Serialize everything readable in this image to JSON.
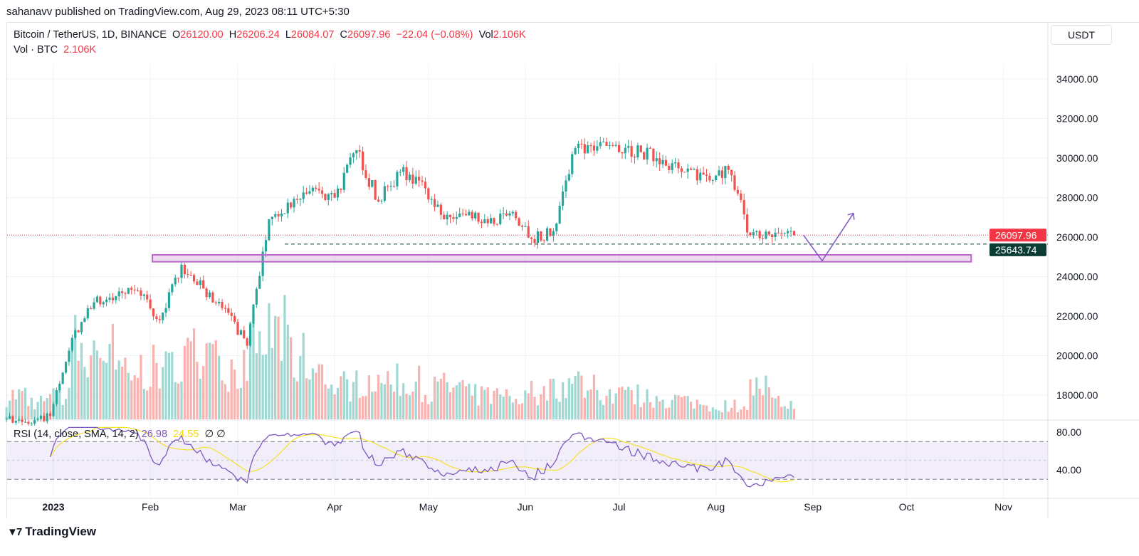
{
  "header": {
    "published": "sahanavv published on TradingView.com, Aug 29, 2023 08:11 UTC+5:30"
  },
  "legend": {
    "symbol": "Bitcoin / TetherUS, 1D, BINANCE",
    "o_label": "O",
    "o": "26120.00",
    "h_label": "H",
    "h": "26206.24",
    "l_label": "L",
    "l": "26084.07",
    "c_label": "C",
    "c": "26097.96",
    "change": "−22.04 (−0.08%)",
    "vol_label": "Vol",
    "vol": "2.106K"
  },
  "volume_legend": {
    "label": "Vol · BTC",
    "value": "2.106K"
  },
  "rsi_legend": {
    "label": "RSI (14, close, SMA, 14, 2)",
    "rsi": "26.98",
    "sma": "24.55",
    "extra1": "∅",
    "extra2": "∅"
  },
  "currency_button": "USDT",
  "footer": {
    "brand": "TradingView"
  },
  "colors": {
    "up": "#26a69a",
    "down": "#ef5350",
    "rsi": "#7e57c2",
    "rsi_sma": "#f5e12b",
    "zone": "#ba68c8"
  },
  "chart_data": {
    "type": "candlestick",
    "price_axis": {
      "ticks": [
        18000,
        20000,
        22000,
        24000,
        26000,
        28000,
        30000,
        32000,
        34000
      ],
      "labels": [
        "18000.00",
        "20000.00",
        "22000.00",
        "24000.00",
        "26000.00",
        "28000.00",
        "30000.00",
        "32000.00",
        "34000.00"
      ]
    },
    "time_axis": {
      "labels": [
        "2023",
        "Feb",
        "Mar",
        "Apr",
        "May",
        "Jun",
        "Jul",
        "Aug",
        "Sep",
        "Oct",
        "Nov"
      ],
      "dates": [
        "2023-01-01",
        "2023-02-01",
        "2023-03-01",
        "2023-04-01",
        "2023-05-01",
        "2023-06-01",
        "2023-07-01",
        "2023-08-01",
        "2023-09-01",
        "2023-10-01",
        "2023-11-01"
      ]
    },
    "start_date": "2022-12-17",
    "weekly_closes": [
      16800,
      16550,
      16950,
      20900,
      22700,
      23000,
      23300,
      21800,
      24600,
      23400,
      22400,
      20500,
      26900,
      27500,
      28500,
      28000,
      30400,
      27800,
      29300,
      28800,
      26900,
      27100,
      26700,
      27200,
      25900,
      26300,
      30500,
      30600,
      30300,
      30300,
      29900,
      29300,
      29100,
      29400,
      26100,
      26000,
      26097.96
    ],
    "weekly_volume_k": [
      120,
      90,
      110,
      380,
      340,
      260,
      250,
      240,
      330,
      270,
      250,
      360,
      420,
      300,
      220,
      170,
      200,
      190,
      180,
      150,
      160,
      120,
      110,
      110,
      140,
      170,
      200,
      130,
      120,
      110,
      100,
      80,
      70,
      70,
      160,
      80,
      40
    ],
    "last_price": {
      "value": 26097.96,
      "label": "26097.96"
    },
    "support_line": {
      "value": 25643.74,
      "label": "25643.74"
    },
    "support_zone": {
      "from": 24750,
      "to": 25100,
      "start": "2023-02-01",
      "end": "2023-10-21"
    },
    "projection": [
      {
        "date": "2023-08-29",
        "price": 26100
      },
      {
        "date": "2023-09-04",
        "price": 24800
      },
      {
        "date": "2023-09-14",
        "price": 27200
      }
    ],
    "rsi": {
      "period": 14,
      "sma": 14,
      "levels": [
        70,
        50,
        30
      ],
      "axis_labels": [
        "80.00",
        "40.00"
      ],
      "axis_values": [
        80,
        40
      ],
      "last": 26.98,
      "last_sma": 24.55
    }
  }
}
